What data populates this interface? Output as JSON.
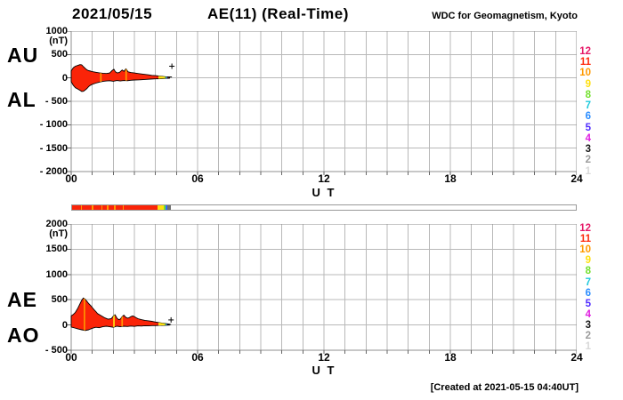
{
  "header": {
    "date": "2021/05/15",
    "title": "AE(11) (Real-Time)",
    "source": "WDC for Geomagnetism, Kyoto"
  },
  "footer": {
    "created_at": "[Created at 2021-05-15 04:40UT]"
  },
  "x_axis": {
    "label": "U T",
    "ticks": [
      "00",
      "06",
      "12",
      "18",
      "24"
    ],
    "tick_hours": [
      0,
      6,
      12,
      18,
      24
    ],
    "min_hour": 0,
    "max_hour": 24,
    "minor_step_hours": 1
  },
  "panels": [
    {
      "name": "AU-AL",
      "labels": [
        "AU",
        "AL"
      ],
      "unit": "(nT)",
      "ymax": 1000,
      "ymin": -2000,
      "ystep": 500,
      "ytick_labels": [
        "1000",
        "500",
        "0",
        "- 500",
        "- 1000",
        "- 1500",
        "- 2000"
      ]
    },
    {
      "name": "AE-AO",
      "labels": [
        "AE",
        "AO"
      ],
      "unit": "(nT)",
      "ymax": 2000,
      "ymin": -500,
      "ystep": 500,
      "ytick_labels": [
        "2000",
        "1500",
        "1000",
        "500",
        "0",
        "- 500"
      ]
    }
  ],
  "stations": {
    "items": [
      {
        "n": "12",
        "color": "#e61a68"
      },
      {
        "n": "11",
        "color": "#ff2a0d"
      },
      {
        "n": "10",
        "color": "#ff9a00"
      },
      {
        "n": "9",
        "color": "#ffdf0f"
      },
      {
        "n": "8",
        "color": "#73e02e"
      },
      {
        "n": "7",
        "color": "#1fc9dc"
      },
      {
        "n": "6",
        "color": "#2b8dff"
      },
      {
        "n": "5",
        "color": "#4f2bff"
      },
      {
        "n": "4",
        "color": "#e01fe0"
      },
      {
        "n": "3",
        "color": "#1a1a1a"
      },
      {
        "n": "2",
        "color": "#9b9b9b"
      },
      {
        "n": "1",
        "color": "#d8d8d8"
      }
    ]
  },
  "availability_bar": {
    "border_color": "#999999",
    "segments": [
      {
        "from_hour": 0.0,
        "to_hour": 4.07,
        "color": "#fa2408"
      },
      {
        "from_hour": 0.42,
        "to_hour": 0.46,
        "color": "#ff9a00"
      },
      {
        "from_hour": 0.95,
        "to_hour": 1.0,
        "color": "#ff9a00"
      },
      {
        "from_hour": 1.38,
        "to_hour": 1.44,
        "color": "#ff9a00"
      },
      {
        "from_hour": 1.66,
        "to_hour": 1.74,
        "color": "#ff9a00"
      },
      {
        "from_hour": 2.0,
        "to_hour": 2.08,
        "color": "#ff9a00"
      },
      {
        "from_hour": 2.4,
        "to_hour": 2.45,
        "color": "#ff9a00"
      },
      {
        "from_hour": 4.07,
        "to_hour": 4.37,
        "color": "#ffdf0f"
      },
      {
        "from_hour": 4.37,
        "to_hour": 4.45,
        "color": "#73e02e"
      },
      {
        "from_hour": 4.45,
        "to_hour": 4.53,
        "color": "#2b6dff"
      },
      {
        "from_hour": 4.53,
        "to_hour": 4.7,
        "color": "#6f6f6f"
      }
    ]
  },
  "chart_data": [
    {
      "type": "area",
      "title": "AU and AL indices",
      "xlabel": "U T",
      "ylabel": "(nT)",
      "xlim": [
        0,
        24
      ],
      "ylim": [
        -2000,
        1000
      ],
      "grid": {
        "x_step_hours": 1,
        "y_step_nT": 500
      },
      "fill_color": "#fa2408",
      "outline_color": "#000000",
      "series": [
        {
          "name": "AU",
          "points": [
            [
              0,
              150
            ],
            [
              0.1,
              220
            ],
            [
              0.2,
              250
            ],
            [
              0.3,
              265
            ],
            [
              0.42,
              285
            ],
            [
              0.5,
              280
            ],
            [
              0.58,
              240
            ],
            [
              0.67,
              200
            ],
            [
              0.75,
              170
            ],
            [
              0.83,
              155
            ],
            [
              0.92,
              145
            ],
            [
              1.0,
              135
            ],
            [
              1.17,
              120
            ],
            [
              1.33,
              110
            ],
            [
              1.5,
              100
            ],
            [
              1.67,
              95
            ],
            [
              1.83,
              105
            ],
            [
              1.95,
              160
            ],
            [
              2.03,
              185
            ],
            [
              2.1,
              130
            ],
            [
              2.2,
              105
            ],
            [
              2.3,
              120
            ],
            [
              2.42,
              170
            ],
            [
              2.5,
              140
            ],
            [
              2.6,
              195
            ],
            [
              2.7,
              130
            ],
            [
              2.83,
              115
            ],
            [
              3.0,
              105
            ],
            [
              3.17,
              95
            ],
            [
              3.33,
              85
            ],
            [
              3.5,
              75
            ],
            [
              3.67,
              65
            ],
            [
              3.83,
              55
            ],
            [
              4.0,
              48
            ],
            [
              4.17,
              40
            ],
            [
              4.33,
              32
            ],
            [
              4.5,
              22
            ],
            [
              4.67,
              15
            ]
          ]
        },
        {
          "name": "AL",
          "points": [
            [
              0,
              -80
            ],
            [
              0.1,
              -160
            ],
            [
              0.2,
              -210
            ],
            [
              0.3,
              -235
            ],
            [
              0.42,
              -265
            ],
            [
              0.5,
              -290
            ],
            [
              0.58,
              -285
            ],
            [
              0.67,
              -255
            ],
            [
              0.75,
              -225
            ],
            [
              0.83,
              -185
            ],
            [
              0.92,
              -155
            ],
            [
              1.0,
              -135
            ],
            [
              1.17,
              -110
            ],
            [
              1.33,
              -90
            ],
            [
              1.5,
              -75
            ],
            [
              1.67,
              -65
            ],
            [
              1.83,
              -60
            ],
            [
              2.0,
              -70
            ],
            [
              2.17,
              -55
            ],
            [
              2.33,
              -65
            ],
            [
              2.5,
              -55
            ],
            [
              2.67,
              -60
            ],
            [
              2.83,
              -50
            ],
            [
              3.0,
              -45
            ],
            [
              3.25,
              -40
            ],
            [
              3.5,
              -32
            ],
            [
              3.75,
              -26
            ],
            [
              4.0,
              -20
            ],
            [
              4.25,
              -15
            ],
            [
              4.5,
              -10
            ],
            [
              4.67,
              -6
            ]
          ]
        }
      ],
      "stripes": [
        {
          "t": 1.41,
          "color": "#ff9a00"
        },
        {
          "t": 2.61,
          "color": "#ff9a00"
        }
      ],
      "tip_segments": [
        {
          "from": 4.14,
          "to": 4.44,
          "color": "#ffdf0f"
        },
        {
          "from": 4.44,
          "to": 4.51,
          "color": "#73e02e"
        },
        {
          "from": 4.51,
          "to": 4.57,
          "color": "#2b6dff"
        }
      ],
      "end_marker": {
        "line_from": 4.55,
        "line_to": 4.78,
        "line_v": 20,
        "cross_t": 4.78,
        "cross_v": 250
      }
    },
    {
      "type": "area",
      "title": "AE and AO indices",
      "xlabel": "U T",
      "ylabel": "(nT)",
      "xlim": [
        0,
        24
      ],
      "ylim": [
        -500,
        2000
      ],
      "grid": {
        "x_step_hours": 1,
        "y_step_nT": 500
      },
      "fill_color": "#fa2408",
      "outline_color": "#000000",
      "series": [
        {
          "name": "AE",
          "points": [
            [
              0,
              180
            ],
            [
              0.1,
              210
            ],
            [
              0.2,
              250
            ],
            [
              0.3,
              320
            ],
            [
              0.42,
              420
            ],
            [
              0.5,
              490
            ],
            [
              0.58,
              535
            ],
            [
              0.67,
              505
            ],
            [
              0.75,
              465
            ],
            [
              0.83,
              425
            ],
            [
              0.92,
              385
            ],
            [
              1.0,
              345
            ],
            [
              1.08,
              305
            ],
            [
              1.17,
              265
            ],
            [
              1.25,
              225
            ],
            [
              1.42,
              185
            ],
            [
              1.58,
              145
            ],
            [
              1.75,
              115
            ],
            [
              1.9,
              125
            ],
            [
              2.0,
              175
            ],
            [
              2.08,
              205
            ],
            [
              2.17,
              135
            ],
            [
              2.25,
              105
            ],
            [
              2.33,
              115
            ],
            [
              2.42,
              165
            ],
            [
              2.5,
              195
            ],
            [
              2.58,
              155
            ],
            [
              2.67,
              135
            ],
            [
              2.75,
              145
            ],
            [
              2.83,
              165
            ],
            [
              2.92,
              180
            ],
            [
              3.0,
              165
            ],
            [
              3.08,
              145
            ],
            [
              3.17,
              125
            ],
            [
              3.33,
              105
            ],
            [
              3.5,
              92
            ],
            [
              3.67,
              82
            ],
            [
              3.83,
              72
            ],
            [
              4.0,
              58
            ],
            [
              4.17,
              46
            ],
            [
              4.33,
              36
            ],
            [
              4.5,
              26
            ],
            [
              4.67,
              16
            ]
          ]
        },
        {
          "name": "AO",
          "points": [
            [
              0,
              -40
            ],
            [
              0.17,
              -60
            ],
            [
              0.33,
              -80
            ],
            [
              0.5,
              -95
            ],
            [
              0.67,
              -110
            ],
            [
              0.83,
              -95
            ],
            [
              1.0,
              -65
            ],
            [
              1.17,
              -45
            ],
            [
              1.33,
              -55
            ],
            [
              1.5,
              -35
            ],
            [
              1.67,
              -25
            ],
            [
              1.83,
              -35
            ],
            [
              2.0,
              -45
            ],
            [
              2.17,
              -25
            ],
            [
              2.33,
              -35
            ],
            [
              2.5,
              -25
            ],
            [
              2.67,
              -30
            ],
            [
              2.83,
              -22
            ],
            [
              3.0,
              -28
            ],
            [
              3.17,
              -18
            ],
            [
              3.33,
              -22
            ],
            [
              3.5,
              -14
            ],
            [
              3.67,
              -18
            ],
            [
              3.83,
              -12
            ],
            [
              4.0,
              -12
            ],
            [
              4.17,
              -9
            ],
            [
              4.33,
              -7
            ],
            [
              4.5,
              -5
            ],
            [
              4.67,
              -2
            ]
          ]
        }
      ],
      "stripes": [
        {
          "t": 0.63,
          "color": "#ff9a00"
        },
        {
          "t": 2.03,
          "color": "#ffdf0f"
        },
        {
          "t": 2.42,
          "color": "#ff9a00"
        }
      ],
      "tip_segments": [
        {
          "from": 4.14,
          "to": 4.44,
          "color": "#ffdf0f"
        },
        {
          "from": 4.44,
          "to": 4.51,
          "color": "#73e02e"
        },
        {
          "from": 4.51,
          "to": 4.57,
          "color": "#2b6dff"
        }
      ],
      "end_marker": {
        "line_from": 4.55,
        "line_to": 4.74,
        "line_v": 10,
        "cross_t": 4.74,
        "cross_v": 100
      }
    }
  ]
}
